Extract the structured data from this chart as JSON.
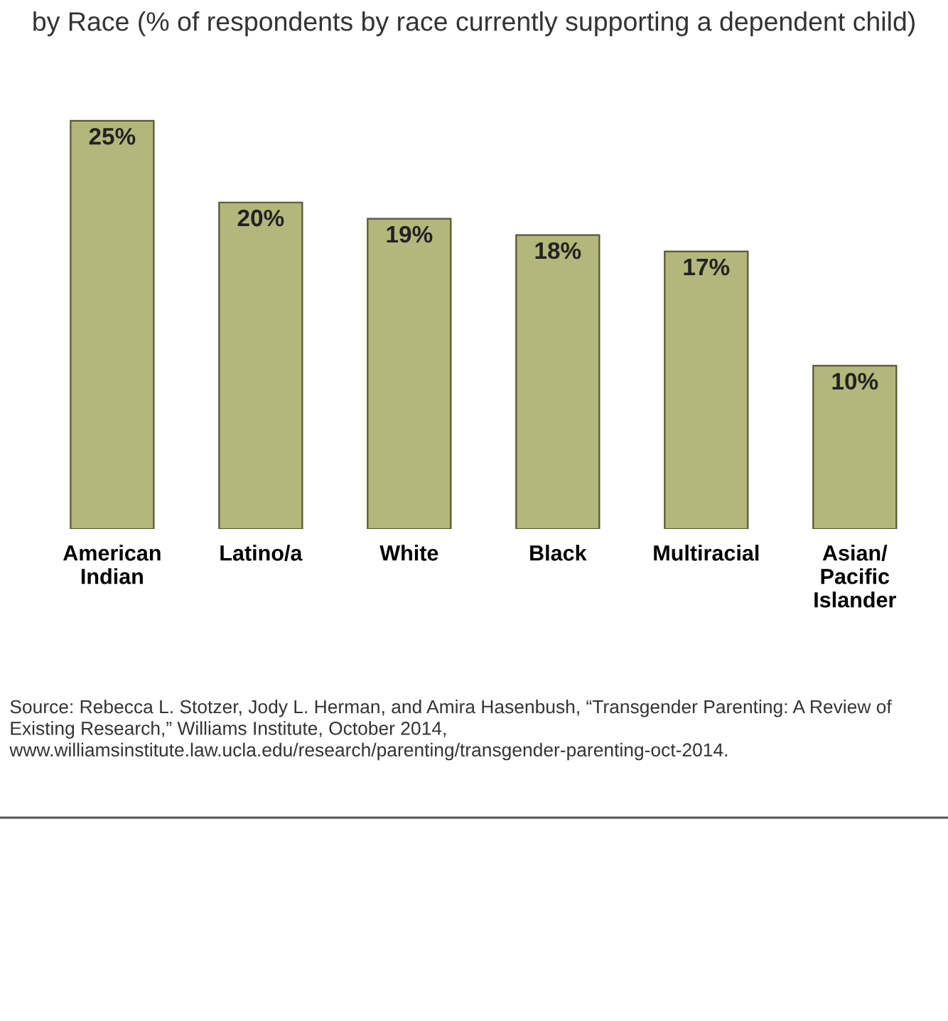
{
  "chart_data": {
    "type": "bar",
    "title": "by Race (% of respondents by race currently supporting a dependent child)",
    "categories": [
      "American\nIndian",
      "Latino/a",
      "White",
      "Black",
      "Multiracial",
      "Asian/\nPacific\nIslander"
    ],
    "values": [
      25,
      20,
      19,
      18,
      17,
      10
    ],
    "value_labels": [
      "25%",
      "20%",
      "19%",
      "18%",
      "17%",
      "10%"
    ],
    "color": "#b4b77b",
    "grid": false,
    "legend": false,
    "annotations": [
      "Source: Rebecca L. Stotzer, Jody L. Herman, and Amira Hasenbush, “Transgender Parenting: A Review of Existing Research,” Williams Institute, October 2014, www.williamsinstitute.law.ucla.edu/research/parenting/transgender-parenting-oct-2014."
    ]
  }
}
